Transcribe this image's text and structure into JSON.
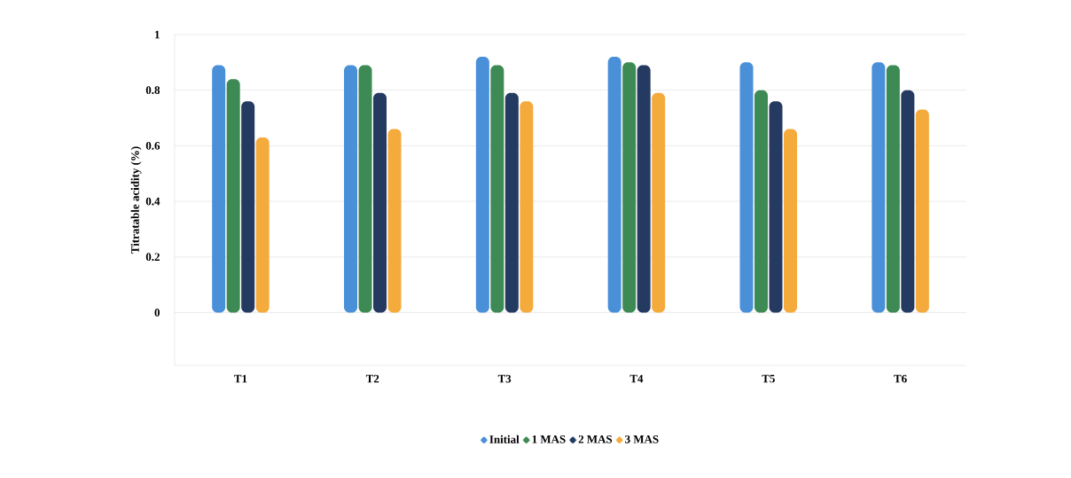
{
  "chart_data": {
    "type": "bar",
    "ylabel": "Titratable acidity (%)",
    "categories": [
      "T1",
      "T2",
      "T3",
      "T4",
      "T5",
      "T6"
    ],
    "series": [
      {
        "name": "Initial",
        "color": "#4a90d9",
        "values": [
          0.89,
          0.89,
          0.92,
          0.92,
          0.9,
          0.9
        ]
      },
      {
        "name": "1 MAS",
        "color": "#3e8a54",
        "values": [
          0.84,
          0.89,
          0.89,
          0.9,
          0.8,
          0.89
        ]
      },
      {
        "name": "2 MAS",
        "color": "#243a60",
        "values": [
          0.76,
          0.79,
          0.79,
          0.89,
          0.76,
          0.8
        ]
      },
      {
        "name": "3 MAS",
        "color": "#f5aa3c",
        "values": [
          0.63,
          0.66,
          0.76,
          0.79,
          0.66,
          0.73
        ]
      }
    ],
    "ylim": [
      -0.19,
      1
    ],
    "yticks": [
      0,
      0.2,
      0.4,
      0.6,
      0.8,
      1
    ],
    "grid": "y",
    "legend": "bottom"
  }
}
